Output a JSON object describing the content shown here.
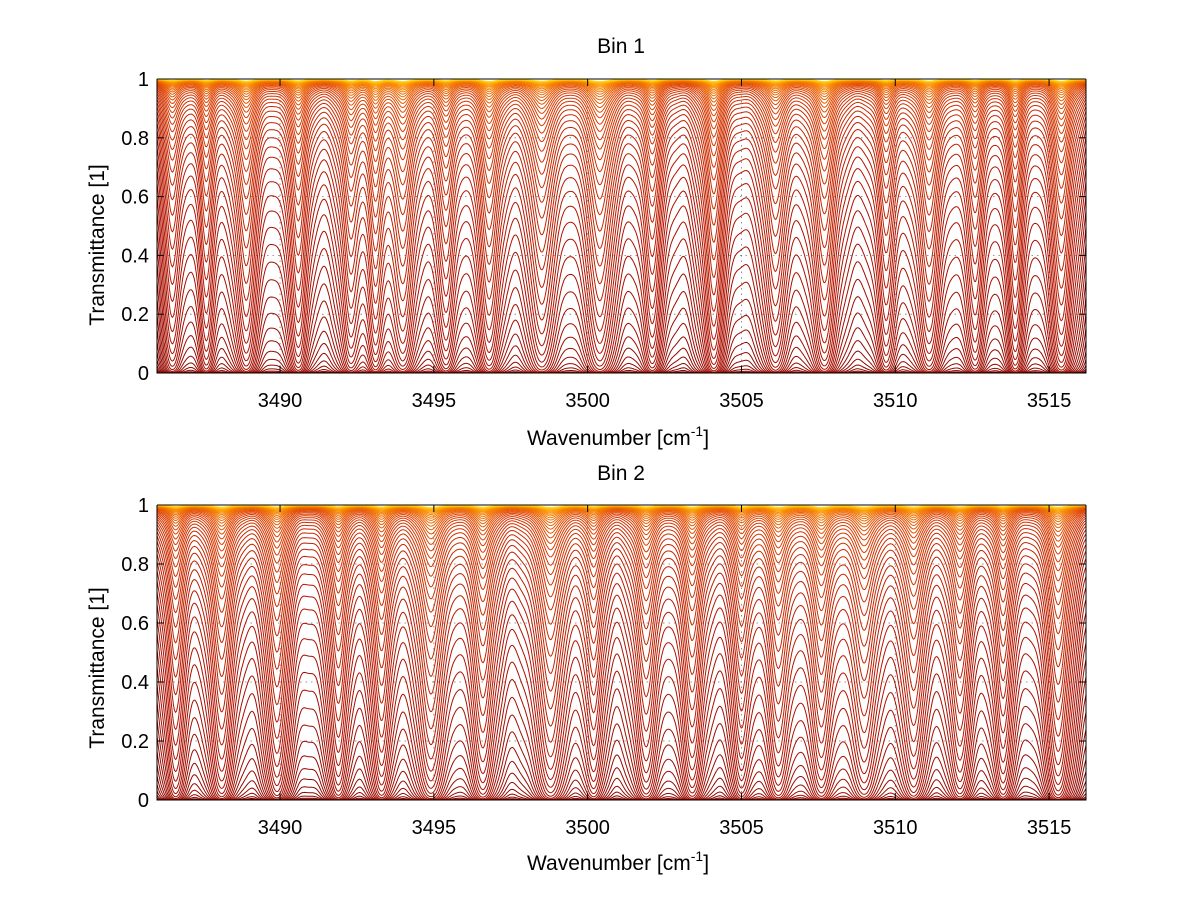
{
  "chart_data": [
    {
      "type": "line",
      "title": "Bin 1",
      "xlabel": "Wavenumber [cm",
      "xlabel_superscript": "-1",
      "xlabel_suffix": "]",
      "ylabel": "Transmittance [1]",
      "xlim": [
        3486,
        3516.2
      ],
      "ylim": [
        0,
        1
      ],
      "xticks": [
        3490,
        3495,
        3500,
        3505,
        3510,
        3515
      ],
      "yticks": [
        0,
        0.2,
        0.4,
        0.6,
        0.8,
        1
      ],
      "xtick_labels": [
        "3490",
        "3495",
        "3500",
        "3505",
        "3510",
        "3515"
      ],
      "ytick_labels": [
        "0",
        "0.2",
        "0.4",
        "0.6",
        "0.8",
        "1"
      ],
      "grid": true,
      "n_series": 60,
      "colormap": "hot (dark red to yellow)",
      "absorption_lines": [
        {
          "x": 3486.5,
          "depth": 0.5,
          "width": 0.25
        },
        {
          "x": 3487.6,
          "depth": 0.55,
          "width": 0.22
        },
        {
          "x": 3488.9,
          "depth": 0.85,
          "width": 0.28
        },
        {
          "x": 3490.6,
          "depth": 0.75,
          "width": 0.25
        },
        {
          "x": 3492.3,
          "depth": 0.7,
          "width": 0.25
        },
        {
          "x": 3493.1,
          "depth": 0.9,
          "width": 0.22
        },
        {
          "x": 3494.0,
          "depth": 0.95,
          "width": 0.3
        },
        {
          "x": 3495.4,
          "depth": 0.6,
          "width": 0.25
        },
        {
          "x": 3496.8,
          "depth": 0.95,
          "width": 0.28
        },
        {
          "x": 3498.5,
          "depth": 0.85,
          "width": 0.35
        },
        {
          "x": 3500.4,
          "depth": 1.0,
          "width": 0.35
        },
        {
          "x": 3502.1,
          "depth": 0.6,
          "width": 0.25
        },
        {
          "x": 3504.1,
          "depth": 0.95,
          "width": 0.25
        },
        {
          "x": 3506.1,
          "depth": 0.75,
          "width": 0.3
        },
        {
          "x": 3507.7,
          "depth": 1.0,
          "width": 0.3
        },
        {
          "x": 3509.7,
          "depth": 0.6,
          "width": 0.25
        },
        {
          "x": 3511.1,
          "depth": 0.85,
          "width": 0.3
        },
        {
          "x": 3512.6,
          "depth": 0.55,
          "width": 0.25
        },
        {
          "x": 3513.9,
          "depth": 0.65,
          "width": 0.22
        },
        {
          "x": 3515.4,
          "depth": 0.9,
          "width": 0.28
        }
      ]
    },
    {
      "type": "line",
      "title": "Bin 2",
      "xlabel": "Wavenumber [cm",
      "xlabel_superscript": "-1",
      "xlabel_suffix": "]",
      "ylabel": "Transmittance [1]",
      "xlim": [
        3486,
        3516.2
      ],
      "ylim": [
        0,
        1
      ],
      "xticks": [
        3490,
        3495,
        3500,
        3505,
        3510,
        3515
      ],
      "yticks": [
        0,
        0.2,
        0.4,
        0.6,
        0.8,
        1
      ],
      "xtick_labels": [
        "3490",
        "3495",
        "3500",
        "3505",
        "3510",
        "3515"
      ],
      "ytick_labels": [
        "0",
        "0.2",
        "0.4",
        "0.6",
        "0.8",
        "1"
      ],
      "grid": true,
      "n_series": 60,
      "colormap": "hot (dark red to yellow)",
      "absorption_lines": [
        {
          "x": 3486.6,
          "depth": 0.6,
          "width": 0.25
        },
        {
          "x": 3488.1,
          "depth": 0.85,
          "width": 0.3
        },
        {
          "x": 3489.9,
          "depth": 0.8,
          "width": 0.28
        },
        {
          "x": 3491.9,
          "depth": 0.65,
          "width": 0.25
        },
        {
          "x": 3493.3,
          "depth": 0.75,
          "width": 0.25
        },
        {
          "x": 3494.9,
          "depth": 1.0,
          "width": 0.35
        },
        {
          "x": 3496.6,
          "depth": 0.85,
          "width": 0.3
        },
        {
          "x": 3498.8,
          "depth": 1.0,
          "width": 0.35
        },
        {
          "x": 3500.2,
          "depth": 0.55,
          "width": 0.25
        },
        {
          "x": 3501.9,
          "depth": 0.7,
          "width": 0.3
        },
        {
          "x": 3503.4,
          "depth": 0.8,
          "width": 0.28
        },
        {
          "x": 3505.0,
          "depth": 0.65,
          "width": 0.25
        },
        {
          "x": 3506.2,
          "depth": 0.9,
          "width": 0.3
        },
        {
          "x": 3507.6,
          "depth": 0.95,
          "width": 0.3
        },
        {
          "x": 3509.0,
          "depth": 0.85,
          "width": 0.35
        },
        {
          "x": 3510.6,
          "depth": 0.8,
          "width": 0.3
        },
        {
          "x": 3512.1,
          "depth": 0.7,
          "width": 0.28
        },
        {
          "x": 3513.5,
          "depth": 0.6,
          "width": 0.25
        },
        {
          "x": 3515.3,
          "depth": 0.95,
          "width": 0.3
        }
      ]
    }
  ]
}
